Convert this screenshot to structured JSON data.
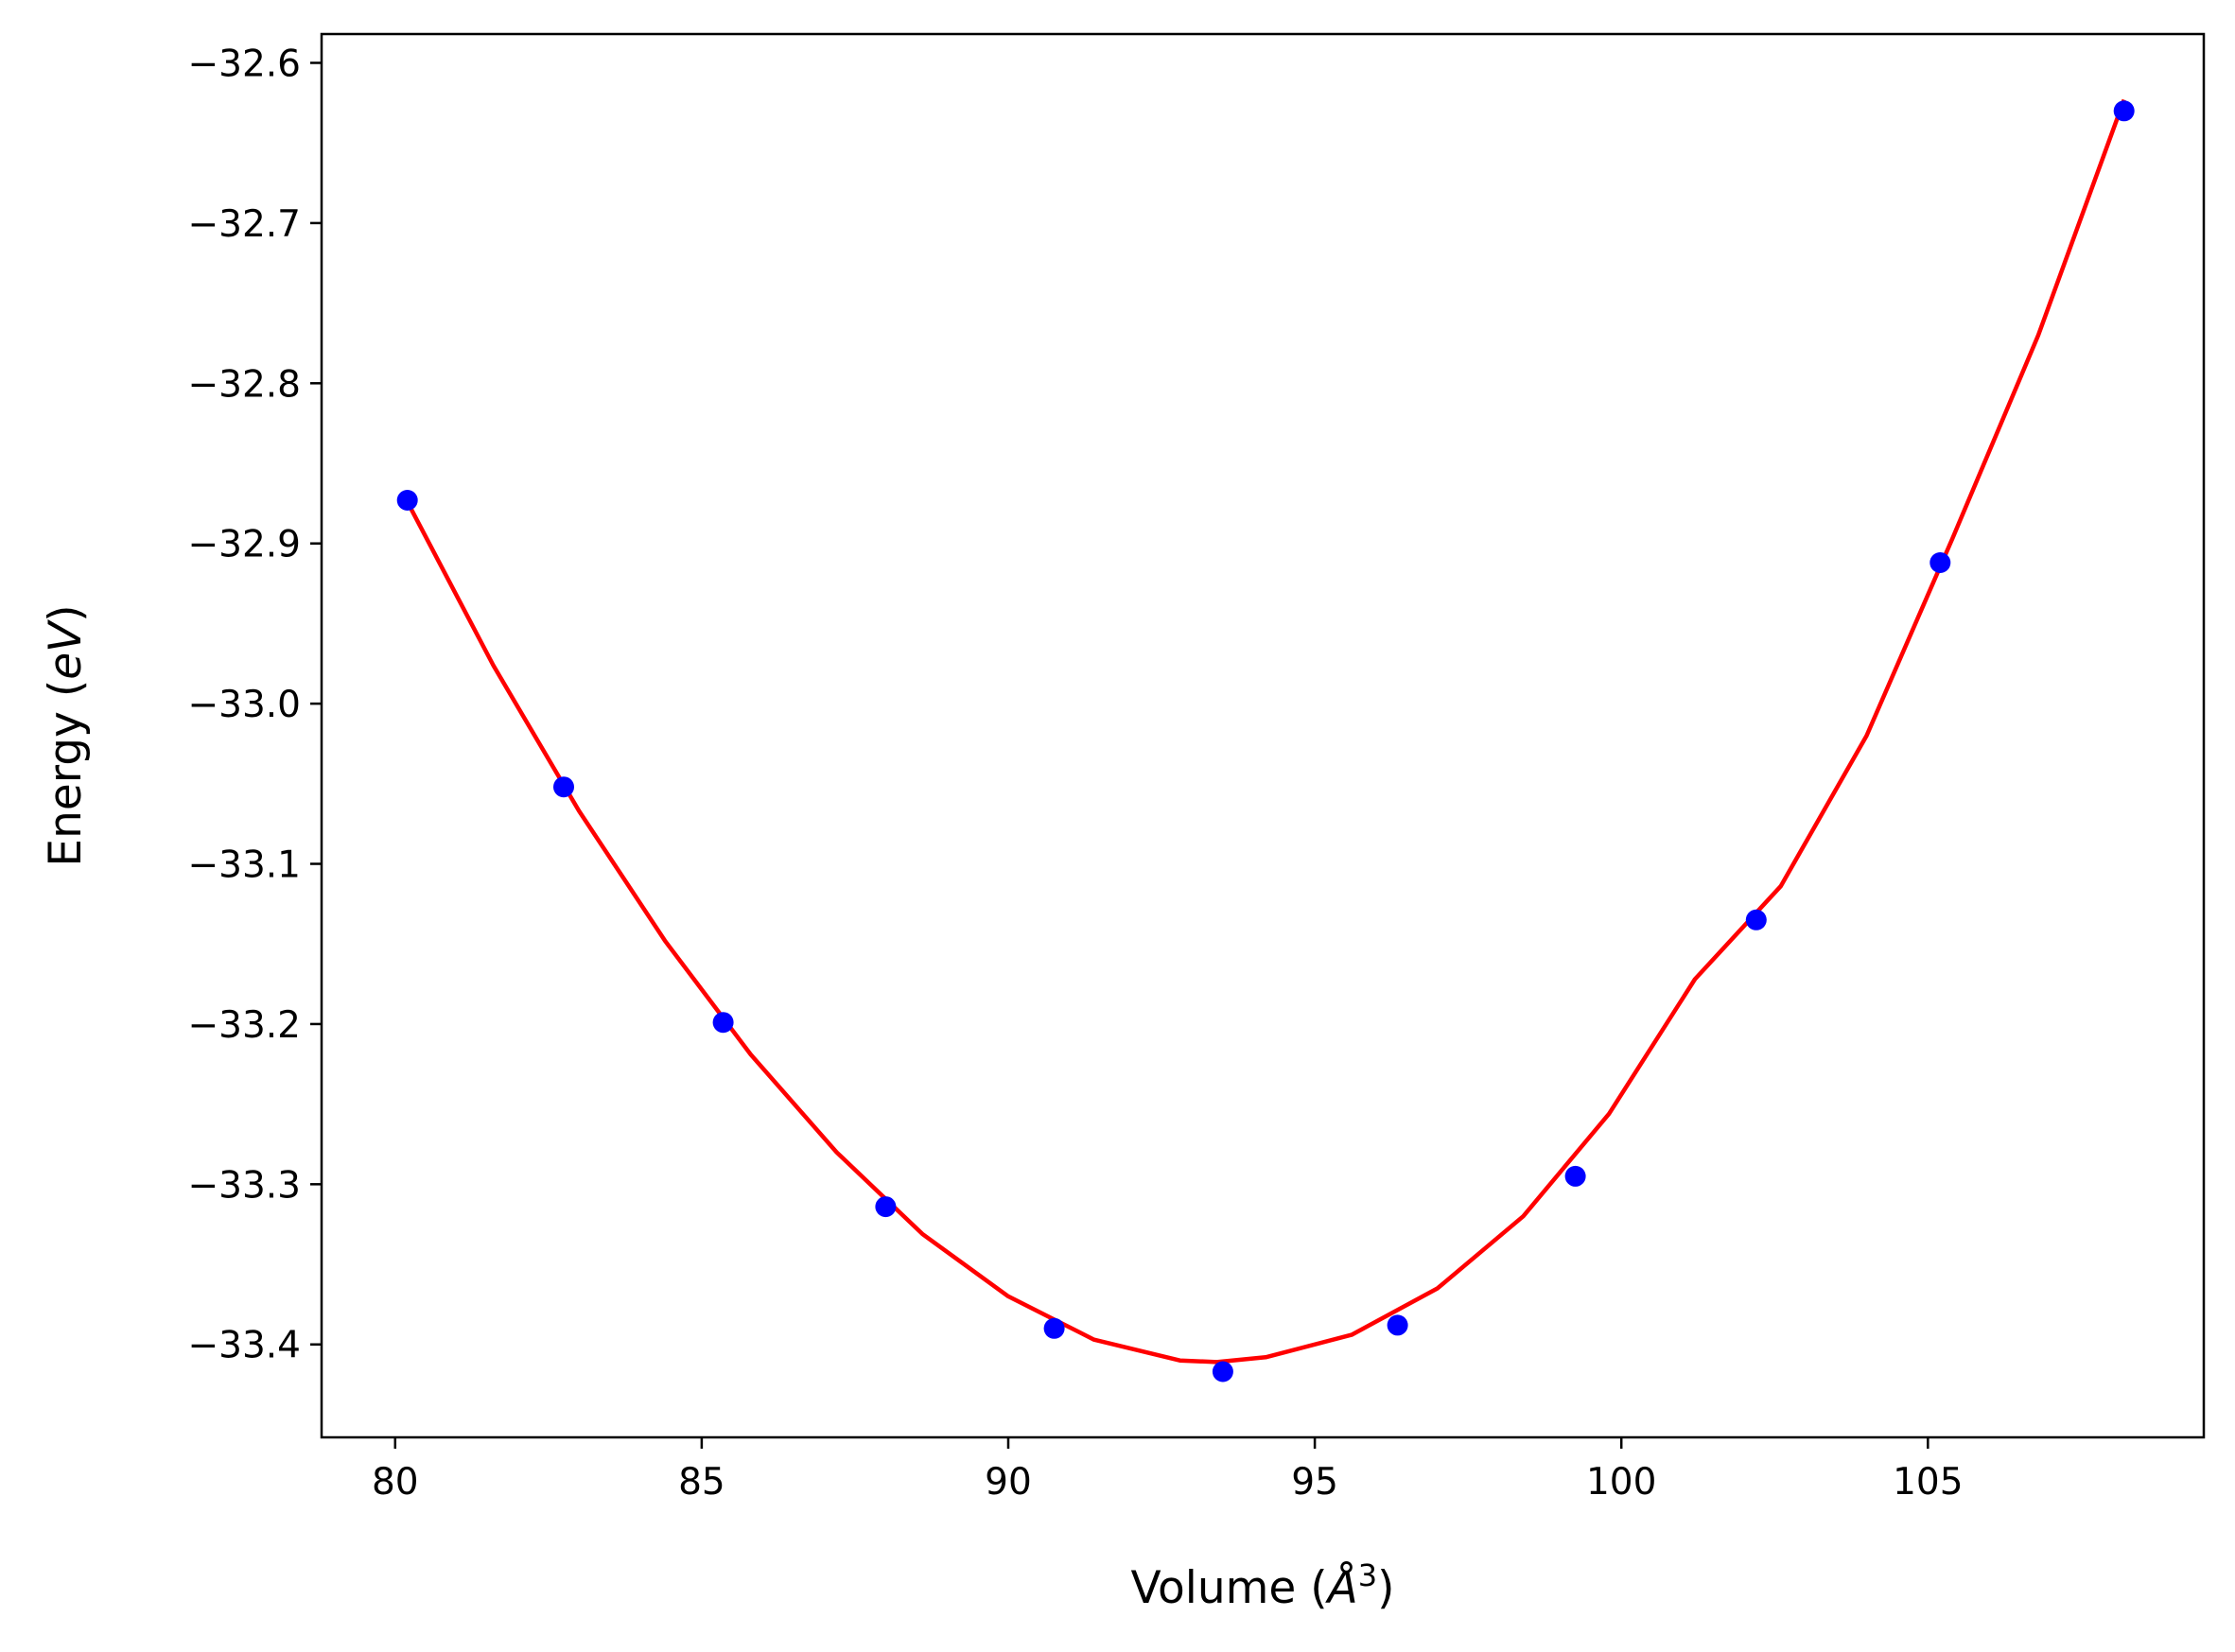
{
  "chart_data": {
    "type": "scatter",
    "xlabel": "Volume (Å³)",
    "xlabel_parts": {
      "text": "Volume (",
      "symbol": "Å",
      "superscript": "3",
      "close": ")"
    },
    "ylabel": "Energy (eV)",
    "ylabel_parts": {
      "text": "Energy (",
      "italic": "eV",
      "close": ")"
    },
    "xlim": [
      78.8,
      109.5
    ],
    "ylim": [
      -33.458,
      -32.582
    ],
    "xticks": [
      80,
      85,
      90,
      95,
      100,
      105
    ],
    "xtick_labels": [
      "80",
      "85",
      "90",
      "95",
      "100",
      "105"
    ],
    "yticks": [
      -32.6,
      -32.7,
      -32.8,
      -32.9,
      -33.0,
      -33.1,
      -33.2,
      -33.3,
      -33.4
    ],
    "ytick_labels": [
      "−32.6",
      "−32.7",
      "−32.8",
      "−32.9",
      "−33.0",
      "−33.1",
      "−33.2",
      "−33.3",
      "−33.4"
    ],
    "grid": false,
    "series": [
      {
        "kind": "points",
        "color": "#0000ff",
        "x": [
          80.2,
          82.75,
          85.35,
          88.0,
          90.75,
          93.5,
          96.35,
          99.25,
          102.2,
          105.2,
          108.2
        ],
        "y": [
          -32.873,
          -33.052,
          -33.199,
          -33.314,
          -33.39,
          -33.417,
          -33.388,
          -33.295,
          -33.135,
          -32.912,
          -32.63
        ]
      },
      {
        "kind": "fit-curve",
        "color": "#ff0000",
        "x": [
          80.2,
          81.6,
          83.0,
          84.4,
          85.8,
          87.2,
          88.6,
          90.0,
          91.4,
          92.8,
          93.4,
          94.2,
          95.6,
          97.0,
          98.4,
          99.8,
          101.2,
          102.6,
          104.0,
          105.4,
          106.8,
          108.2
        ],
        "y": [
          -32.874,
          -32.976,
          -33.067,
          -33.148,
          -33.219,
          -33.28,
          -33.331,
          -33.37,
          -33.397,
          -33.41,
          -33.411,
          -33.408,
          -33.394,
          -33.365,
          -33.32,
          -33.256,
          -33.172,
          -33.114,
          -33.02,
          -32.897,
          -32.77,
          -32.623
        ]
      }
    ]
  }
}
